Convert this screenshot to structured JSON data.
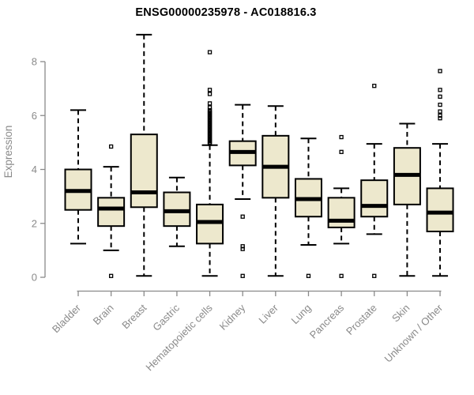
{
  "chart_data": {
    "type": "boxplot",
    "title": "ENSG00000235978 - AC018816.3",
    "ylabel": "Expression",
    "xlabel": "",
    "ylim": [
      0,
      8
    ],
    "yticks": [
      0,
      2,
      4,
      6,
      8
    ],
    "grid": false,
    "legend": false,
    "marker": "open-square",
    "categories": [
      "Bladder",
      "Brain",
      "Breast",
      "Gastric",
      "Hematopoietic cells",
      "Kidney",
      "Liver",
      "Lung",
      "Pancreas",
      "Prostate",
      "Skin",
      "Unknown / Other"
    ],
    "boxes": [
      {
        "label": "Bladder",
        "whisker_low": 1.25,
        "q1": 2.5,
        "median": 3.2,
        "q3": 4.0,
        "whisker_high": 6.2,
        "outliers": []
      },
      {
        "label": "Brain",
        "whisker_low": 1.0,
        "q1": 1.9,
        "median": 2.55,
        "q3": 2.95,
        "whisker_high": 4.1,
        "outliers": [
          4.85,
          0.05
        ]
      },
      {
        "label": "Breast",
        "whisker_low": 0.05,
        "q1": 2.6,
        "median": 3.15,
        "q3": 5.3,
        "whisker_high": 9.0,
        "outliers": []
      },
      {
        "label": "Gastric",
        "whisker_low": 1.15,
        "q1": 1.9,
        "median": 2.45,
        "q3": 3.15,
        "whisker_high": 3.7,
        "outliers": []
      },
      {
        "label": "Hematopoietic cells",
        "whisker_low": 0.05,
        "q1": 1.25,
        "median": 2.05,
        "q3": 2.7,
        "whisker_high": 4.9,
        "outliers": [
          8.35,
          6.95,
          6.8,
          6.45,
          6.3,
          6.2,
          6.15,
          6.1,
          6.05,
          6.0,
          5.95,
          5.9,
          5.85,
          5.8,
          5.75,
          5.7,
          5.65,
          5.6,
          5.55,
          5.5,
          5.45,
          5.4,
          5.35,
          5.3,
          5.25,
          5.2,
          5.15,
          5.1,
          5.05,
          5.0,
          4.95
        ]
      },
      {
        "label": "Kidney",
        "whisker_low": 2.9,
        "q1": 4.15,
        "median": 4.65,
        "q3": 5.05,
        "whisker_high": 6.4,
        "outliers": [
          2.25,
          1.15,
          1.05,
          0.05
        ]
      },
      {
        "label": "Liver",
        "whisker_low": 0.05,
        "q1": 2.95,
        "median": 4.1,
        "q3": 5.25,
        "whisker_high": 6.35,
        "outliers": []
      },
      {
        "label": "Lung",
        "whisker_low": 1.2,
        "q1": 2.25,
        "median": 2.9,
        "q3": 3.65,
        "whisker_high": 5.15,
        "outliers": [
          0.05
        ]
      },
      {
        "label": "Pancreas",
        "whisker_low": 1.25,
        "q1": 1.85,
        "median": 2.1,
        "q3": 2.95,
        "whisker_high": 3.3,
        "outliers": [
          5.2,
          4.65,
          0.05
        ]
      },
      {
        "label": "Prostate",
        "whisker_low": 1.6,
        "q1": 2.25,
        "median": 2.65,
        "q3": 3.6,
        "whisker_high": 4.95,
        "outliers": [
          7.1,
          0.05
        ]
      },
      {
        "label": "Skin",
        "whisker_low": 0.05,
        "q1": 2.7,
        "median": 3.8,
        "q3": 4.8,
        "whisker_high": 5.7,
        "outliers": []
      },
      {
        "label": "Unknown / Other",
        "whisker_low": 0.05,
        "q1": 1.7,
        "median": 2.4,
        "q3": 3.3,
        "whisker_high": 4.95,
        "outliers": [
          7.65,
          6.95,
          6.7,
          6.4,
          6.15,
          6.0,
          5.9
        ]
      }
    ],
    "colors": {
      "box_fill": "#EDE8CD",
      "box_border": "#000000",
      "median": "#000000",
      "whisker": "#000000",
      "outlier": "#000000",
      "axis": "#8a8a8a",
      "tick_label": "#8a8a8a",
      "title": "#000000",
      "background": "#ffffff"
    }
  }
}
